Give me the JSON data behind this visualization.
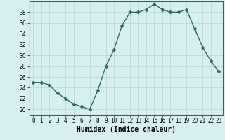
{
  "x": [
    0,
    1,
    2,
    3,
    4,
    5,
    6,
    7,
    8,
    9,
    10,
    11,
    12,
    13,
    14,
    15,
    16,
    17,
    18,
    19,
    20,
    21,
    22,
    23
  ],
  "y": [
    25.0,
    25.0,
    24.5,
    23.0,
    22.0,
    21.0,
    20.5,
    20.0,
    23.5,
    28.0,
    31.0,
    35.5,
    38.0,
    38.0,
    38.5,
    39.5,
    38.5,
    38.0,
    38.0,
    38.5,
    35.0,
    31.5,
    29.0,
    27.0
  ],
  "line_color": "#2d6b5e",
  "marker": "D",
  "marker_size": 2.5,
  "line_width": 1.0,
  "bg_color": "#d8eff0",
  "grid_color": "#c0d8d8",
  "xlabel": "Humidex (Indice chaleur)",
  "xlabel_fontsize": 7,
  "xlabel_weight": "bold",
  "ylim": [
    19,
    40
  ],
  "yticks": [
    20,
    22,
    24,
    26,
    28,
    30,
    32,
    34,
    36,
    38
  ],
  "xticks": [
    0,
    1,
    2,
    3,
    4,
    5,
    6,
    7,
    8,
    9,
    10,
    11,
    12,
    13,
    14,
    15,
    16,
    17,
    18,
    19,
    20,
    21,
    22,
    23
  ],
  "tick_fontsize": 5.5,
  "axis_color": "#406060"
}
